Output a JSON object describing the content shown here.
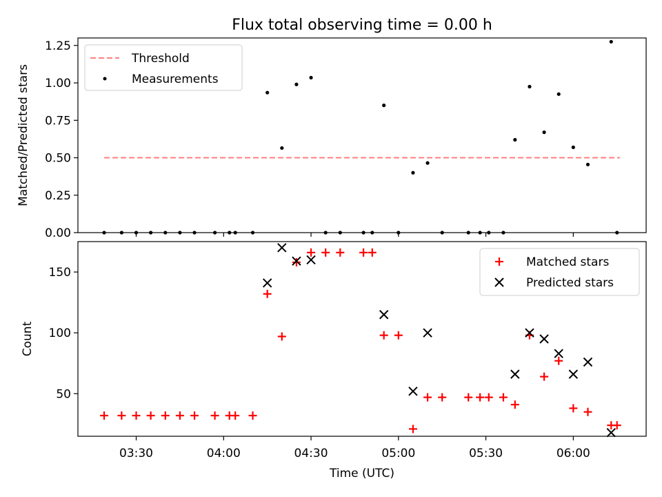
{
  "chart_data": [
    {
      "type": "scatter",
      "title": "Flux total observing time = 0.00 h",
      "ylabel": "Matched/Predicted stars",
      "xlabel": "",
      "ylim": [
        0,
        1.3
      ],
      "yticks": [
        {
          "value": 0.0,
          "label": "0.00"
        },
        {
          "value": 0.25,
          "label": "0.25"
        },
        {
          "value": 0.5,
          "label": "0.50"
        },
        {
          "value": 0.75,
          "label": "0.75"
        },
        {
          "value": 1.0,
          "label": "1.00"
        },
        {
          "value": 1.25,
          "label": "1.25"
        }
      ],
      "legend": {
        "position": "top-left",
        "entries": [
          "Threshold",
          "Measurements"
        ]
      },
      "threshold": {
        "name": "Threshold",
        "value": 0.5,
        "x_start": "03:19",
        "x_end": "06:16",
        "color": "#ff7f7f",
        "style": "dashed"
      },
      "series": [
        {
          "name": "Measurements",
          "marker": "dot",
          "color": "#000000",
          "x": [
            "03:19",
            "03:25",
            "03:30",
            "03:35",
            "03:40",
            "03:45",
            "03:50",
            "03:57",
            "04:02",
            "04:04",
            "04:10",
            "04:15",
            "04:20",
            "04:25",
            "04:30",
            "04:35",
            "04:40",
            "04:48",
            "04:51",
            "04:55",
            "05:00",
            "05:05",
            "05:10",
            "05:15",
            "05:24",
            "05:28",
            "05:31",
            "05:36",
            "05:40",
            "05:45",
            "05:50",
            "05:55",
            "06:00",
            "06:05",
            "06:13",
            "06:15"
          ],
          "y": [
            0,
            0,
            0,
            0,
            0,
            0,
            0,
            0,
            0,
            0,
            0,
            0.935,
            0.565,
            0.99,
            1.035,
            0,
            0,
            0,
            0,
            0.85,
            0,
            0.4,
            0.465,
            0,
            0,
            0,
            0,
            0,
            0.62,
            0.975,
            0.67,
            0.925,
            0.57,
            0.455,
            1.275,
            0
          ]
        }
      ]
    },
    {
      "type": "scatter",
      "title": "",
      "ylabel": "Count",
      "xlabel": "Time (UTC)",
      "ylim": [
        15,
        175
      ],
      "yticks": [
        {
          "value": 50,
          "label": "50"
        },
        {
          "value": 100,
          "label": "100"
        },
        {
          "value": 150,
          "label": "150"
        }
      ],
      "xlim": [
        "03:10",
        "06:25"
      ],
      "xticks": [
        {
          "value": "03:30",
          "label": "03:30"
        },
        {
          "value": "04:00",
          "label": "04:00"
        },
        {
          "value": "04:30",
          "label": "04:30"
        },
        {
          "value": "05:00",
          "label": "05:00"
        },
        {
          "value": "05:30",
          "label": "05:30"
        },
        {
          "value": "06:00",
          "label": "06:00"
        }
      ],
      "legend": {
        "position": "top-right",
        "entries": [
          "Matched stars",
          "Predicted stars"
        ]
      },
      "series": [
        {
          "name": "Matched stars",
          "marker": "plus",
          "color": "#ff0000",
          "x": [
            "03:19",
            "03:25",
            "03:30",
            "03:35",
            "03:40",
            "03:45",
            "03:50",
            "03:57",
            "04:02",
            "04:04",
            "04:10",
            "04:15",
            "04:20",
            "04:25",
            "04:30",
            "04:35",
            "04:40",
            "04:48",
            "04:51",
            "04:55",
            "05:00",
            "05:05",
            "05:10",
            "05:15",
            "05:24",
            "05:28",
            "05:31",
            "05:36",
            "05:40",
            "05:45",
            "05:50",
            "05:55",
            "06:00",
            "06:05",
            "06:13",
            "06:15"
          ],
          "y": [
            32,
            32,
            32,
            32,
            32,
            32,
            32,
            32,
            32,
            32,
            32,
            132,
            97,
            158,
            166,
            166,
            166,
            166,
            166,
            98,
            98,
            21,
            47,
            47,
            47,
            47,
            47,
            47,
            41,
            98,
            64,
            77,
            38,
            35,
            24,
            24
          ]
        },
        {
          "name": "Predicted stars",
          "marker": "x",
          "color": "#000000",
          "x": [
            "04:15",
            "04:20",
            "04:25",
            "04:30",
            "04:55",
            "05:05",
            "05:10",
            "05:40",
            "05:45",
            "05:50",
            "05:55",
            "06:00",
            "06:05",
            "06:13"
          ],
          "y": [
            141,
            170,
            159,
            160,
            115,
            52,
            100,
            66,
            100,
            95,
            83,
            66,
            76,
            18
          ]
        }
      ]
    }
  ]
}
